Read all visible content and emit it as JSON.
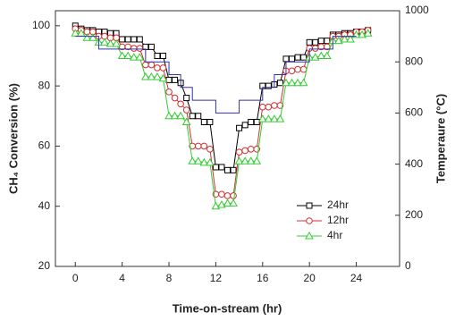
{
  "chart_data": {
    "type": "line",
    "xlabel": "Time-on-stream (hr)",
    "ylabel": "CH₄ Conversion (%)",
    "y2label": "Temperaure (°C)",
    "xlim": [
      -1.7,
      27.7
    ],
    "xticks": [
      0,
      4,
      8,
      12,
      16,
      20,
      24
    ],
    "ylim": [
      20,
      105
    ],
    "yticks": [
      20,
      40,
      60,
      80,
      100
    ],
    "y2lim": [
      0,
      1000
    ],
    "y2ticks": [
      0,
      200,
      400,
      600,
      800,
      1000
    ],
    "x": [
      0,
      0.5,
      1,
      1.5,
      2,
      2.5,
      3,
      3.5,
      4,
      4.5,
      5,
      5.5,
      6,
      6.5,
      7,
      7.5,
      8,
      8.5,
      9,
      9.5,
      10,
      10.5,
      11,
      11.5,
      12,
      12.5,
      13,
      13.5,
      14,
      14.5,
      15,
      15.5,
      16,
      16.5,
      17,
      17.5,
      18,
      18.5,
      19,
      19.5,
      20,
      20.5,
      21,
      21.5,
      22,
      22.5,
      23,
      23.5,
      24,
      24.5,
      25
    ],
    "legend": "lower right",
    "series": [
      {
        "name": "24hr",
        "color": "#000000",
        "marker": "square",
        "values": [
          100,
          99,
          98.5,
          98.5,
          98,
          98,
          97.5,
          97.5,
          95.5,
          95.5,
          95.5,
          95.5,
          93,
          93,
          90,
          90,
          82,
          82,
          81,
          76,
          70,
          70,
          68,
          68,
          53,
          53,
          52,
          52,
          66,
          67,
          68,
          68,
          80,
          80,
          80.5,
          81,
          89,
          89,
          89.5,
          89.5,
          94.5,
          94.5,
          95,
          95,
          97,
          97,
          97.5,
          97.5,
          98,
          98,
          98.5
        ]
      },
      {
        "name": "12hr",
        "color": "#d03030",
        "marker": "circle",
        "values": [
          99,
          98.5,
          98,
          98,
          96.5,
          96.5,
          96,
          96,
          93,
          93,
          92.5,
          92.5,
          87,
          87,
          86,
          86,
          78,
          76,
          74,
          72,
          60,
          60,
          60,
          59,
          44,
          44,
          43.5,
          43.5,
          58,
          58.5,
          59,
          59,
          73,
          73,
          73.5,
          73.5,
          85,
          85,
          85.5,
          85.5,
          92.5,
          92.5,
          93,
          93,
          96.5,
          96.5,
          97,
          97,
          98,
          98,
          98.5
        ]
      },
      {
        "name": "4hr",
        "color": "#33cc33",
        "marker": "triangle",
        "values": [
          97.5,
          97.5,
          96,
          96,
          94.5,
          94.5,
          94,
          94,
          90,
          90,
          89.5,
          89.5,
          83,
          83,
          83,
          82.5,
          70,
          70,
          70,
          68,
          55,
          55,
          54.5,
          54.5,
          40,
          40.5,
          41,
          41,
          55,
          55,
          55,
          55,
          69,
          69,
          69,
          69,
          81,
          81,
          81,
          81,
          89.5,
          89.5,
          90,
          90,
          95,
          95,
          95.5,
          95.5,
          97,
          97,
          97.5
        ]
      },
      {
        "color": "#3333aa",
        "axis": "y2",
        "x": [
          0,
          2,
          2,
          6,
          6,
          8,
          8,
          9,
          9,
          10,
          10,
          12,
          12,
          14,
          14,
          16,
          16,
          17,
          17,
          18,
          18,
          20,
          20,
          22,
          22,
          24
        ],
        "values": [
          900,
          900,
          850,
          850,
          800,
          800,
          750,
          750,
          700,
          700,
          650,
          650,
          600,
          600,
          650,
          650,
          700,
          700,
          750,
          750,
          800,
          800,
          850,
          850,
          900,
          900
        ]
      }
    ]
  }
}
